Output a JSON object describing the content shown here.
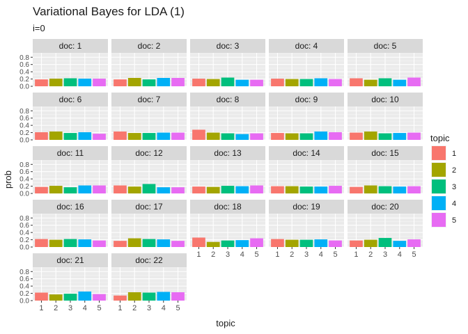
{
  "chart_data": {
    "type": "bar",
    "layout": "facet_wrap",
    "title": "Variational Bayes for LDA (1)",
    "subtitle": "i=0",
    "xlabel": "topic",
    "ylabel": "prob",
    "ylim": [
      0,
      0.92
    ],
    "yticks": [
      0.0,
      0.2,
      0.4,
      0.6,
      0.8
    ],
    "ytick_labels": [
      "0.0",
      "0.2",
      "0.4",
      "0.6",
      "0.8"
    ],
    "grid": true,
    "legend": {
      "title": "topic",
      "placement": "right",
      "entries": [
        "1",
        "2",
        "3",
        "4",
        "5"
      ]
    },
    "colors": [
      "#F8766D",
      "#A3A500",
      "#00BF7D",
      "#00B0F6",
      "#E76BF3"
    ],
    "categories": [
      "1",
      "2",
      "3",
      "4",
      "5"
    ],
    "facet_prefix": "doc: ",
    "facets": [
      {
        "doc": 1,
        "values": [
          0.19,
          0.21,
          0.22,
          0.21,
          0.21
        ]
      },
      {
        "doc": 2,
        "values": [
          0.19,
          0.23,
          0.19,
          0.23,
          0.23
        ]
      },
      {
        "doc": 3,
        "values": [
          0.21,
          0.2,
          0.24,
          0.18,
          0.18
        ]
      },
      {
        "doc": 4,
        "values": [
          0.21,
          0.2,
          0.2,
          0.22,
          0.2
        ]
      },
      {
        "doc": 5,
        "values": [
          0.22,
          0.18,
          0.22,
          0.18,
          0.24
        ]
      },
      {
        "doc": 6,
        "values": [
          0.21,
          0.23,
          0.19,
          0.21,
          0.17
        ]
      },
      {
        "doc": 7,
        "values": [
          0.23,
          0.19,
          0.19,
          0.2,
          0.2
        ]
      },
      {
        "doc": 8,
        "values": [
          0.28,
          0.2,
          0.18,
          0.16,
          0.18
        ]
      },
      {
        "doc": 9,
        "values": [
          0.19,
          0.18,
          0.18,
          0.23,
          0.21
        ]
      },
      {
        "doc": 10,
        "values": [
          0.2,
          0.23,
          0.18,
          0.19,
          0.2
        ]
      },
      {
        "doc": 11,
        "values": [
          0.18,
          0.21,
          0.17,
          0.22,
          0.22
        ]
      },
      {
        "doc": 12,
        "values": [
          0.22,
          0.19,
          0.26,
          0.17,
          0.17
        ]
      },
      {
        "doc": 13,
        "values": [
          0.19,
          0.18,
          0.21,
          0.2,
          0.22
        ]
      },
      {
        "doc": 14,
        "values": [
          0.2,
          0.2,
          0.19,
          0.19,
          0.21
        ]
      },
      {
        "doc": 15,
        "values": [
          0.18,
          0.22,
          0.2,
          0.19,
          0.2
        ]
      },
      {
        "doc": 16,
        "values": [
          0.22,
          0.2,
          0.22,
          0.21,
          0.18
        ]
      },
      {
        "doc": 17,
        "values": [
          0.17,
          0.24,
          0.22,
          0.21,
          0.17
        ]
      },
      {
        "doc": 18,
        "values": [
          0.26,
          0.14,
          0.18,
          0.19,
          0.24
        ]
      },
      {
        "doc": 19,
        "values": [
          0.22,
          0.2,
          0.2,
          0.21,
          0.18
        ]
      },
      {
        "doc": 20,
        "values": [
          0.18,
          0.2,
          0.25,
          0.17,
          0.21
        ]
      },
      {
        "doc": 21,
        "values": [
          0.22,
          0.17,
          0.19,
          0.25,
          0.18
        ]
      },
      {
        "doc": 22,
        "values": [
          0.14,
          0.23,
          0.22,
          0.24,
          0.23
        ]
      }
    ]
  }
}
